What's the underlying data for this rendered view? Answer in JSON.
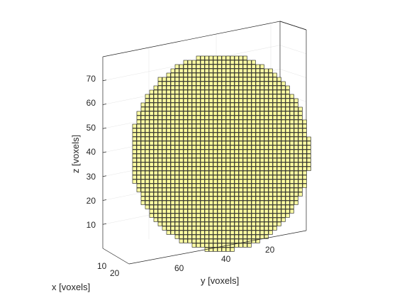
{
  "chart_data": {
    "type": "scatter",
    "plot_kind": "3d-voxel",
    "xlabel": "x [voxels]",
    "ylabel": "y [voxels]",
    "zlabel": "z [voxels]",
    "x_ticks": [
      "10",
      "20"
    ],
    "y_ticks": [
      "20",
      "40",
      "60"
    ],
    "z_ticks": [
      "10",
      "20",
      "30",
      "40",
      "50",
      "60",
      "70"
    ],
    "zlim": [
      0,
      80
    ],
    "grid": true,
    "voxel_face_color": "#ffff99",
    "voxel_edge_color": "#000000",
    "box_color": "#262626",
    "grid_color": "#e6e6e6"
  }
}
